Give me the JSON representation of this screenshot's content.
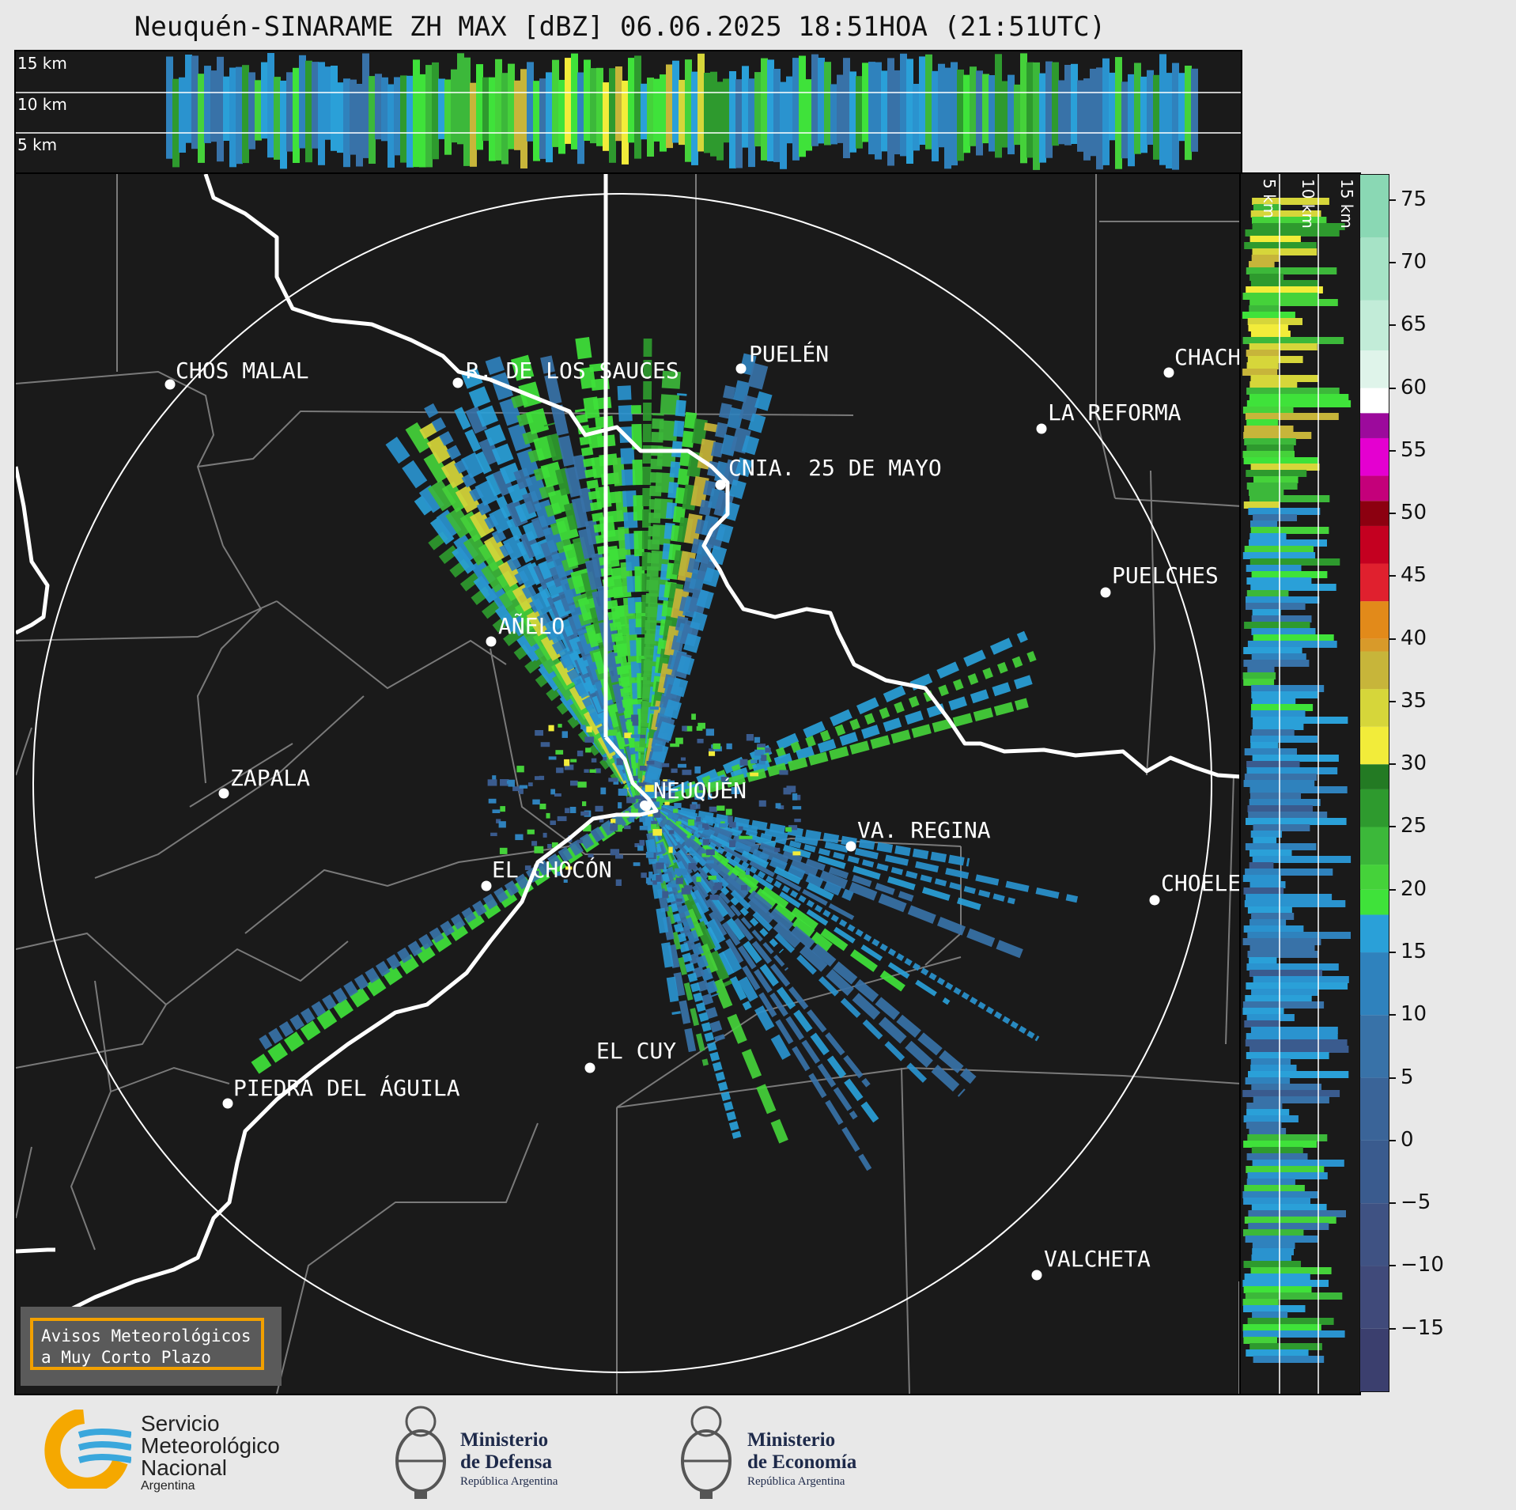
{
  "title": "Neuquén-SINARAME ZH MAX [dBZ] 06.06.2025 18:51HOA (21:51UTC)",
  "top_panel": {
    "height_labels": [
      "15 km",
      "10 km",
      "5 km"
    ]
  },
  "right_panel": {
    "height_labels": [
      "5 km",
      "10 km",
      "15 km"
    ]
  },
  "colorbar": {
    "unit": "dBZ",
    "ticks": [
      "75",
      "70",
      "65",
      "60",
      "55",
      "50",
      "45",
      "40",
      "35",
      "30",
      "25",
      "20",
      "15",
      "10",
      "5",
      "0",
      "−5",
      "−10",
      "−15"
    ],
    "tick_values": [
      75,
      70,
      65,
      60,
      55,
      50,
      45,
      40,
      35,
      30,
      25,
      20,
      15,
      10,
      5,
      0,
      -5,
      -10,
      -15
    ],
    "range": [
      -20,
      77
    ]
  },
  "cities": [
    {
      "name": "CHOS MALAL"
    },
    {
      "name": "R. DE LOS SAUCES"
    },
    {
      "name": "PUELÉN"
    },
    {
      "name": "CHACH"
    },
    {
      "name": "LA REFORMA"
    },
    {
      "name": "CNIA. 25 DE MAYO"
    },
    {
      "name": "PUELCHES"
    },
    {
      "name": "AÑELO"
    },
    {
      "name": "ZAPALA"
    },
    {
      "name": "NEUQUÉN"
    },
    {
      "name": "VA. REGINA"
    },
    {
      "name": "EL CHOCÓN"
    },
    {
      "name": "CHOELE"
    },
    {
      "name": "EL CUY"
    },
    {
      "name": "PIEDRA DEL ÁGUILA"
    },
    {
      "name": "VALCHETA"
    }
  ],
  "aviso": {
    "line1": "Avisos Meteorológicos",
    "line2": "a Muy Corto Plazo"
  },
  "logos": {
    "smn": {
      "line1": "Servicio",
      "line2": "Meteorológico",
      "line3": "Nacional",
      "line4": "Argentina"
    },
    "defensa": {
      "line1": "Ministerio",
      "line2": "de Defensa",
      "line3": "República Argentina"
    },
    "economia": {
      "line1": "Ministerio",
      "line2": "de Economía",
      "line3": "República Argentina"
    }
  },
  "colors": {
    "background": "#1a1a1a",
    "range_ring": "#ffffff",
    "border_line": "#ffffff",
    "province_line": "#7a7a7a",
    "aviso_border": "#f2a000",
    "smn_orange": "#f5a800",
    "smn_blue": "#3aa7dc"
  }
}
